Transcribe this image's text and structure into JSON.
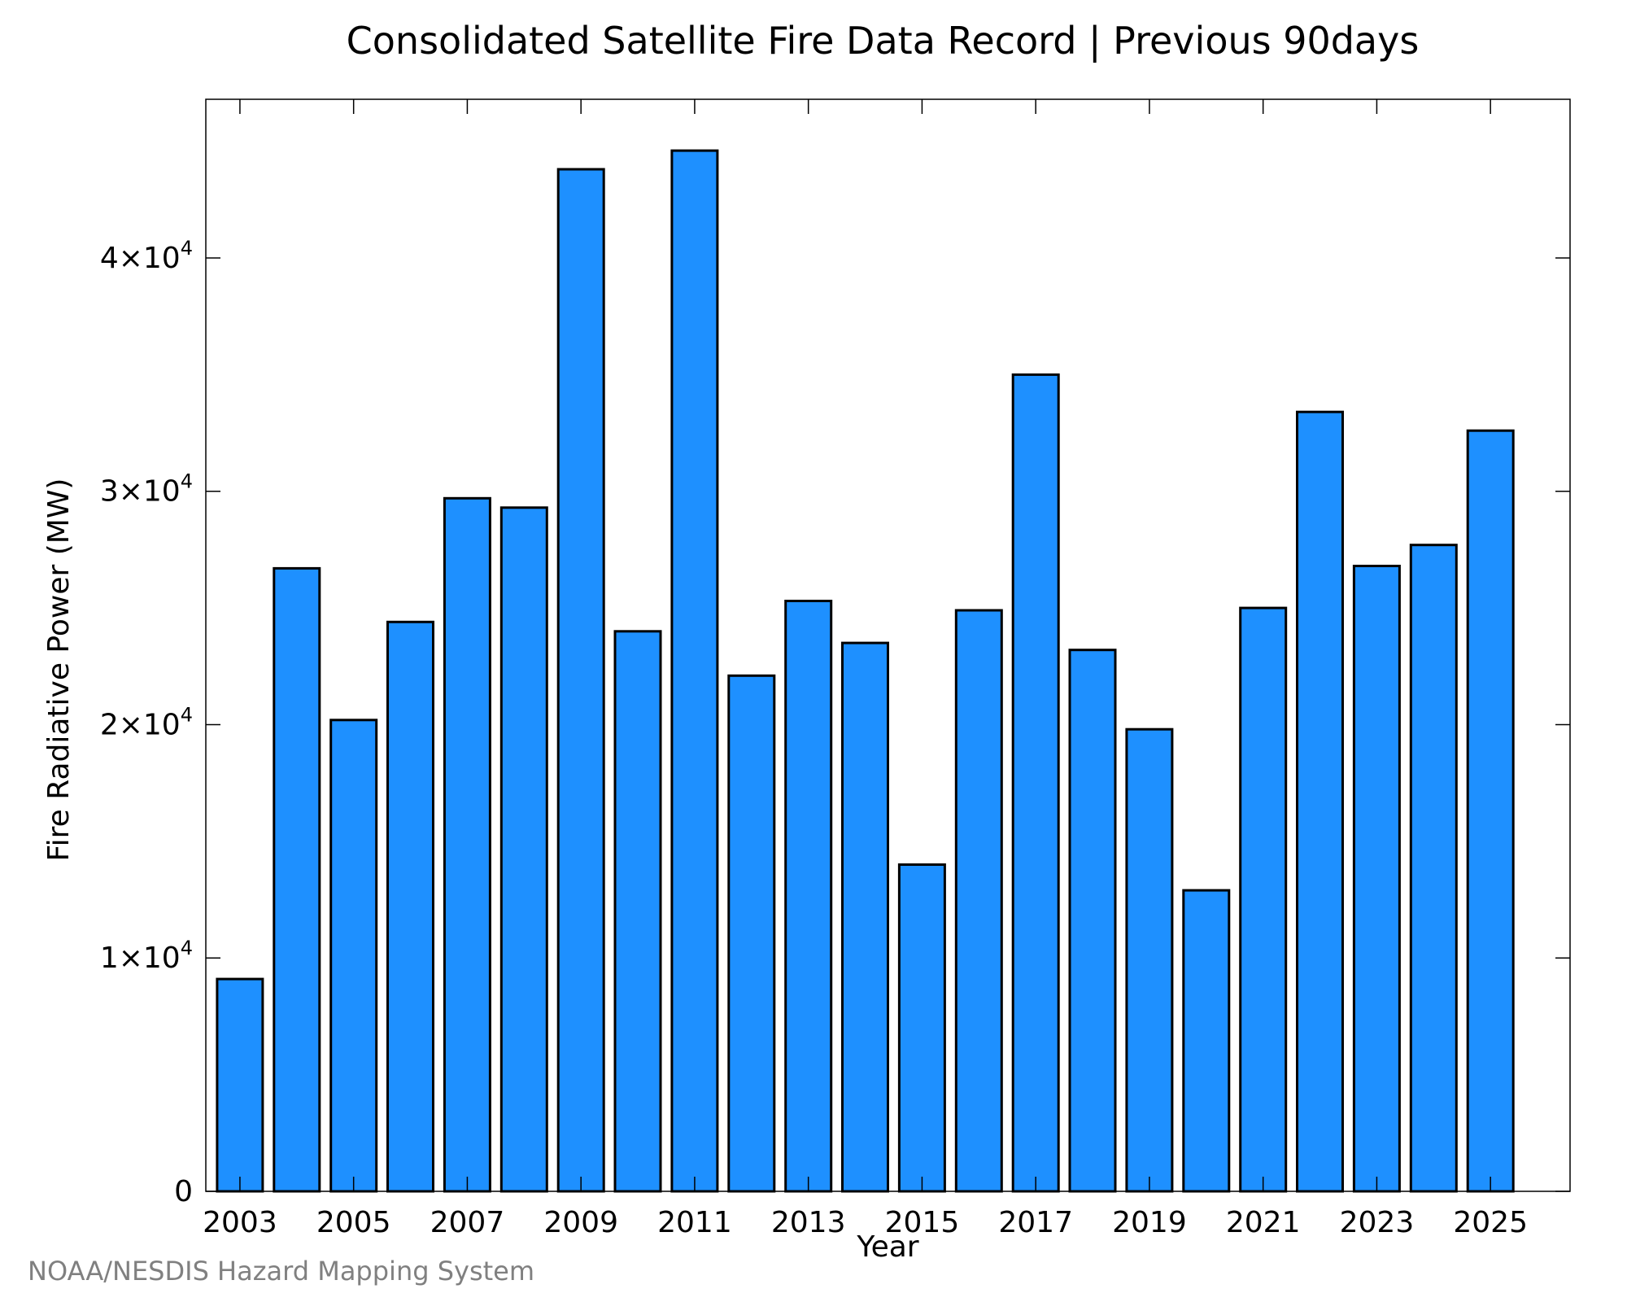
{
  "chart_data": {
    "type": "bar",
    "title": "Consolidated Satellite Fire Data Record | Previous 90days",
    "xlabel": "Year",
    "ylabel": "Fire Radiative Power (MW)",
    "categories": [
      "2003",
      "2004",
      "2005",
      "2006",
      "2007",
      "2008",
      "2009",
      "2010",
      "2011",
      "2012",
      "2013",
      "2014",
      "2015",
      "2016",
      "2017",
      "2018",
      "2019",
      "2020",
      "2021",
      "2022",
      "2023",
      "2024",
      "2025"
    ],
    "values": [
      9100,
      26700,
      20200,
      24400,
      29700,
      29300,
      43800,
      24000,
      44600,
      22100,
      25300,
      23500,
      14000,
      24900,
      35000,
      23200,
      19800,
      12900,
      25000,
      33400,
      26800,
      27700,
      32600
    ],
    "ylim": [
      0,
      46800
    ],
    "x_tick_labels": [
      "2003",
      "2005",
      "2007",
      "2009",
      "2011",
      "2013",
      "2015",
      "2017",
      "2019",
      "2021",
      "2023",
      "2025"
    ],
    "y_ticks": [
      {
        "value": 0,
        "mantissa": "0",
        "exponent": ""
      },
      {
        "value": 10000,
        "mantissa": "1×10",
        "exponent": "4"
      },
      {
        "value": 20000,
        "mantissa": "2×10",
        "exponent": "4"
      },
      {
        "value": 30000,
        "mantissa": "3×10",
        "exponent": "4"
      },
      {
        "value": 40000,
        "mantissa": "4×10",
        "exponent": "4"
      }
    ],
    "bar_color": "#1e90ff",
    "bar_edge_color": "#000000",
    "grid": false,
    "legend": "none"
  },
  "credit": "NOAA/NESDIS Hazard Mapping System",
  "colors": {
    "credit_text": "#808080",
    "axis": "#000000",
    "background": "#ffffff"
  }
}
